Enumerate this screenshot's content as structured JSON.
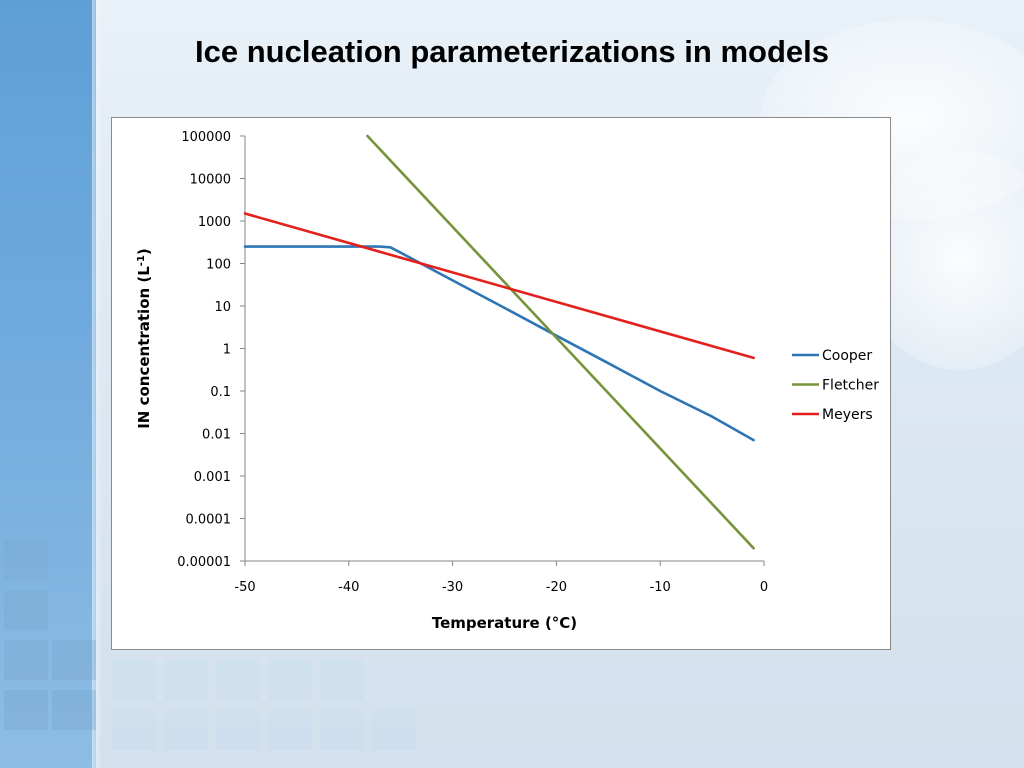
{
  "slide": {
    "title": "Ice nucleation parameterizations in models"
  },
  "colors": {
    "cooper": "#2e75b6",
    "fletcher": "#77933c",
    "meyers": "#e3201b",
    "axis": "#868686"
  },
  "chart_data": {
    "type": "line",
    "title": "",
    "xlabel": "Temperature (°C)",
    "ylabel_main": "IN concentration (L",
    "ylabel_sup": "-1",
    "ylabel_end": ")",
    "xscale": "linear",
    "yscale": "log",
    "xlim": [
      -50,
      0
    ],
    "ylim": [
      1e-05,
      100000
    ],
    "x_ticks": [
      -50,
      -40,
      -30,
      -20,
      -10,
      0
    ],
    "x_tick_labels": [
      "-50",
      "-40",
      "-30",
      "-20",
      "-10",
      "0"
    ],
    "y_ticks": [
      1e-05,
      0.0001,
      0.001,
      0.01,
      0.1,
      1,
      10,
      100,
      1000,
      10000,
      100000
    ],
    "y_tick_labels": [
      "0.00001",
      "0.0001",
      "0.001",
      "0.01",
      "0.1",
      "1",
      "10",
      "100",
      "1000",
      "10000",
      "100000"
    ],
    "grid": false,
    "legend_position": "right",
    "series": [
      {
        "name": "Cooper",
        "color_key": "cooper",
        "points": [
          [
            -50,
            250
          ],
          [
            -40,
            250
          ],
          [
            -37,
            250
          ],
          [
            -36,
            240
          ],
          [
            -35,
            180
          ],
          [
            -30,
            40
          ],
          [
            -25,
            9
          ],
          [
            -20,
            2
          ],
          [
            -15,
            0.45
          ],
          [
            -10,
            0.1
          ],
          [
            -5,
            0.025
          ],
          [
            -1,
            0.007
          ]
        ]
      },
      {
        "name": "Fletcher",
        "color_key": "fletcher",
        "points": [
          [
            -38.2,
            100000
          ],
          [
            -1,
            2e-05
          ]
        ]
      },
      {
        "name": "Meyers",
        "color_key": "meyers",
        "points": [
          [
            -50,
            1500
          ],
          [
            -1,
            0.6
          ]
        ]
      }
    ]
  }
}
